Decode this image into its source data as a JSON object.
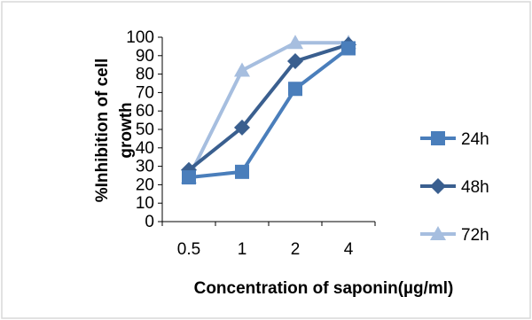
{
  "chart_data": {
    "type": "line",
    "categories": [
      "0.5",
      "1",
      "2",
      "4"
    ],
    "series": [
      {
        "name": "24h",
        "values": [
          24,
          27,
          72,
          94
        ],
        "color": "#4a7ebb",
        "marker": "square"
      },
      {
        "name": "48h",
        "values": [
          28,
          51,
          87,
          96
        ],
        "color": "#3a5f8f",
        "marker": "diamond"
      },
      {
        "name": "72h",
        "values": [
          24,
          82,
          97,
          97
        ],
        "color": "#a6bedf",
        "marker": "triangle"
      }
    ],
    "xlabel": "Concentration of saponin(µg/ml)",
    "ylabel_line1": "%Inhibition of cell",
    "ylabel_line2": "growth",
    "ylim": [
      0,
      100
    ],
    "yticks": [
      "0",
      "10",
      "20",
      "30",
      "40",
      "50",
      "60",
      "70",
      "80",
      "90",
      "100"
    ],
    "legend_position": "right",
    "grid": false
  }
}
